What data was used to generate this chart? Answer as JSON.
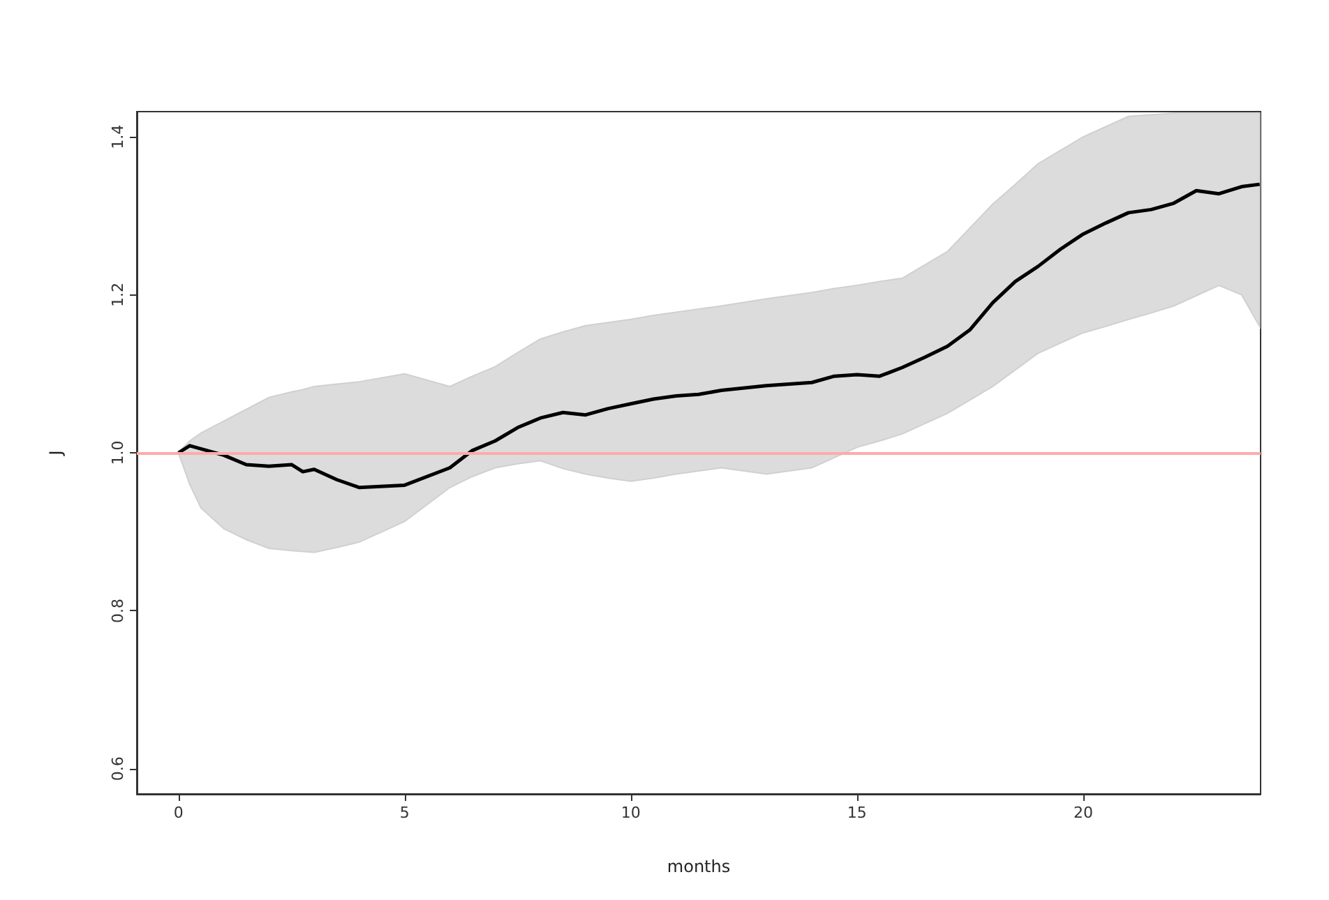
{
  "chart_data": {
    "type": "line",
    "xlabel": "months",
    "ylabel": "J",
    "xlim": [
      -0.92,
      23.92
    ],
    "ylim": [
      0.568,
      1.432
    ],
    "xticks": [
      0,
      5,
      10,
      15,
      20
    ],
    "yticks": [
      0.6,
      0.8,
      {
        "value": 1,
        "label": "1.0"
      },
      1.2,
      1.4
    ],
    "marker": "none",
    "series": [
      {
        "color": "#000000",
        "x": [
          0,
          0.25,
          0.5,
          1,
          1.5,
          2,
          2.5,
          2.75,
          3,
          3.5,
          4,
          5,
          6,
          6.5,
          7,
          7.5,
          8,
          8.5,
          9,
          9.5,
          10,
          10.5,
          11,
          11.5,
          12,
          13,
          14,
          14.5,
          15,
          15.5,
          16,
          16.5,
          17,
          17.5,
          18,
          18.5,
          19,
          19.5,
          20,
          20.5,
          21,
          21.5,
          22,
          22.5,
          23,
          23.5,
          23.9
        ],
        "values": [
          1.0,
          1.009,
          1.005,
          0.997,
          0.985,
          0.983,
          0.985,
          0.976,
          0.979,
          0.966,
          0.956,
          0.959,
          0.981,
          1.003,
          1.015,
          1.032,
          1.044,
          1.051,
          1.048,
          1.056,
          1.062,
          1.068,
          1.072,
          1.074,
          1.079,
          1.085,
          1.089,
          1.097,
          1.099,
          1.097,
          1.108,
          1.121,
          1.135,
          1.156,
          1.19,
          1.217,
          1.236,
          1.258,
          1.277,
          1.291,
          1.304,
          1.308,
          1.316,
          1.332,
          1.328,
          1.337,
          1.34
        ],
        "lower": [
          1.0,
          0.96,
          0.93,
          0.904,
          0.89,
          0.879,
          0.876,
          0.875,
          0.874,
          0.88,
          0.887,
          0.913,
          0.956,
          0.97,
          0.981,
          0.986,
          0.99,
          0.98,
          0.973,
          0.968,
          0.964,
          0.968,
          0.973,
          0.977,
          0.981,
          0.973,
          0.981,
          0.994,
          1.007,
          1.015,
          1.024,
          1.037,
          1.05,
          1.067,
          1.084,
          1.105,
          1.126,
          1.139,
          1.152,
          1.16,
          1.169,
          1.177,
          1.186,
          1.199,
          1.212,
          1.2,
          1.16
        ],
        "upper": [
          1.0,
          1.015,
          1.025,
          1.04,
          1.055,
          1.07,
          1.077,
          1.08,
          1.084,
          1.087,
          1.09,
          1.1,
          1.084,
          1.097,
          1.109,
          1.127,
          1.144,
          1.153,
          1.161,
          1.165,
          1.169,
          1.174,
          1.178,
          1.182,
          1.186,
          1.195,
          1.203,
          1.208,
          1.212,
          1.217,
          1.221,
          1.238,
          1.255,
          1.285,
          1.315,
          1.34,
          1.366,
          1.383,
          1.4,
          1.413,
          1.426,
          1.428,
          1.43,
          1.43,
          1.43,
          1.43,
          1.43
        ]
      }
    ],
    "ref_lines": [
      {
        "axis": "y",
        "value": 1,
        "color": "#ffaaaa"
      }
    ]
  }
}
